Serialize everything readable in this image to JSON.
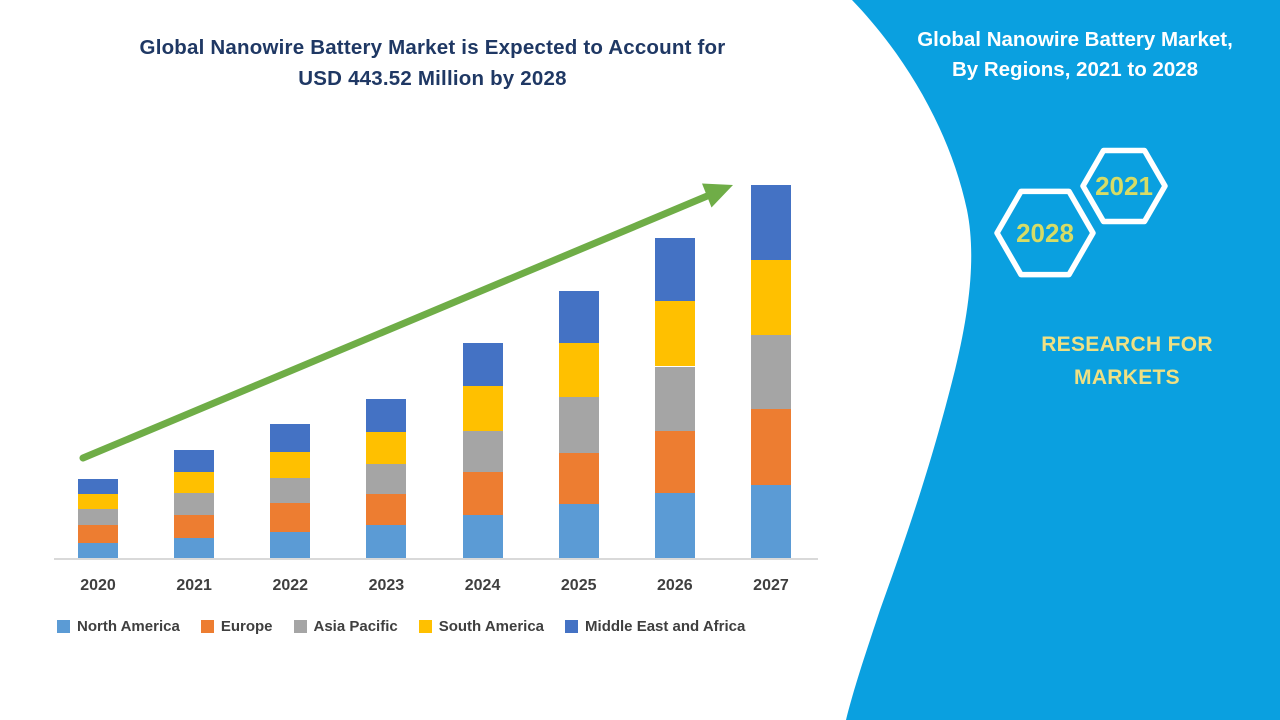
{
  "chart_title": {
    "line1": "Global Nanowire Battery Market is Expected to Account for",
    "line2": "USD 443.52 Million by 2028",
    "color": "#1F3864"
  },
  "chart_data": {
    "type": "bar",
    "stacked": true,
    "title": "Global Nanowire Battery Market is Expected to Account for USD 443.52 Million by 2028",
    "xlabel": "",
    "ylabel": "",
    "units": "USD Million (estimated; value axis not labeled in figure)",
    "categories": [
      "2020",
      "2021",
      "2022",
      "2023",
      "2024",
      "2025",
      "2026",
      "2027"
    ],
    "series": [
      {
        "name": "North America",
        "color": "#5B9BD5",
        "values": [
          17,
          22,
          28,
          35,
          46,
          57,
          69,
          77
        ]
      },
      {
        "name": "Europe",
        "color": "#ED7D31",
        "values": [
          18,
          24,
          30,
          33,
          44,
          53,
          64,
          79
        ]
      },
      {
        "name": "Asia Pacific",
        "color": "#A5A5A5",
        "values": [
          17,
          23,
          26,
          31,
          43,
          58,
          67,
          77
        ]
      },
      {
        "name": "South America",
        "color": "#FFC000",
        "values": [
          16,
          21,
          27,
          33,
          47,
          56,
          68,
          78
        ]
      },
      {
        "name": "Middle East and Africa",
        "color": "#4472C4",
        "values": [
          15,
          23,
          29,
          34,
          44,
          54,
          66,
          78
        ]
      }
    ],
    "totals_estimated": [
      83,
      113,
      140,
      166,
      224,
      278,
      334,
      389
    ],
    "ylim": [
      0,
      410
    ],
    "grid": false,
    "legend_position": "bottom",
    "trend_arrow": {
      "present": true,
      "color": "#6FAD47",
      "direction": "up-right"
    }
  },
  "right_panel": {
    "title_line1": "Global Nanowire Battery Market,",
    "title_line2": "By Regions, 2021 to 2028",
    "background_color": "#0AA0E0",
    "hexagon_back_label": "2028",
    "hexagon_front_label": "2021",
    "hexagon_year_color": "#D6DC66",
    "brand_line1": "RESEARCH FOR",
    "brand_line2": "MARKETS",
    "brand_color": "#EFE083"
  }
}
